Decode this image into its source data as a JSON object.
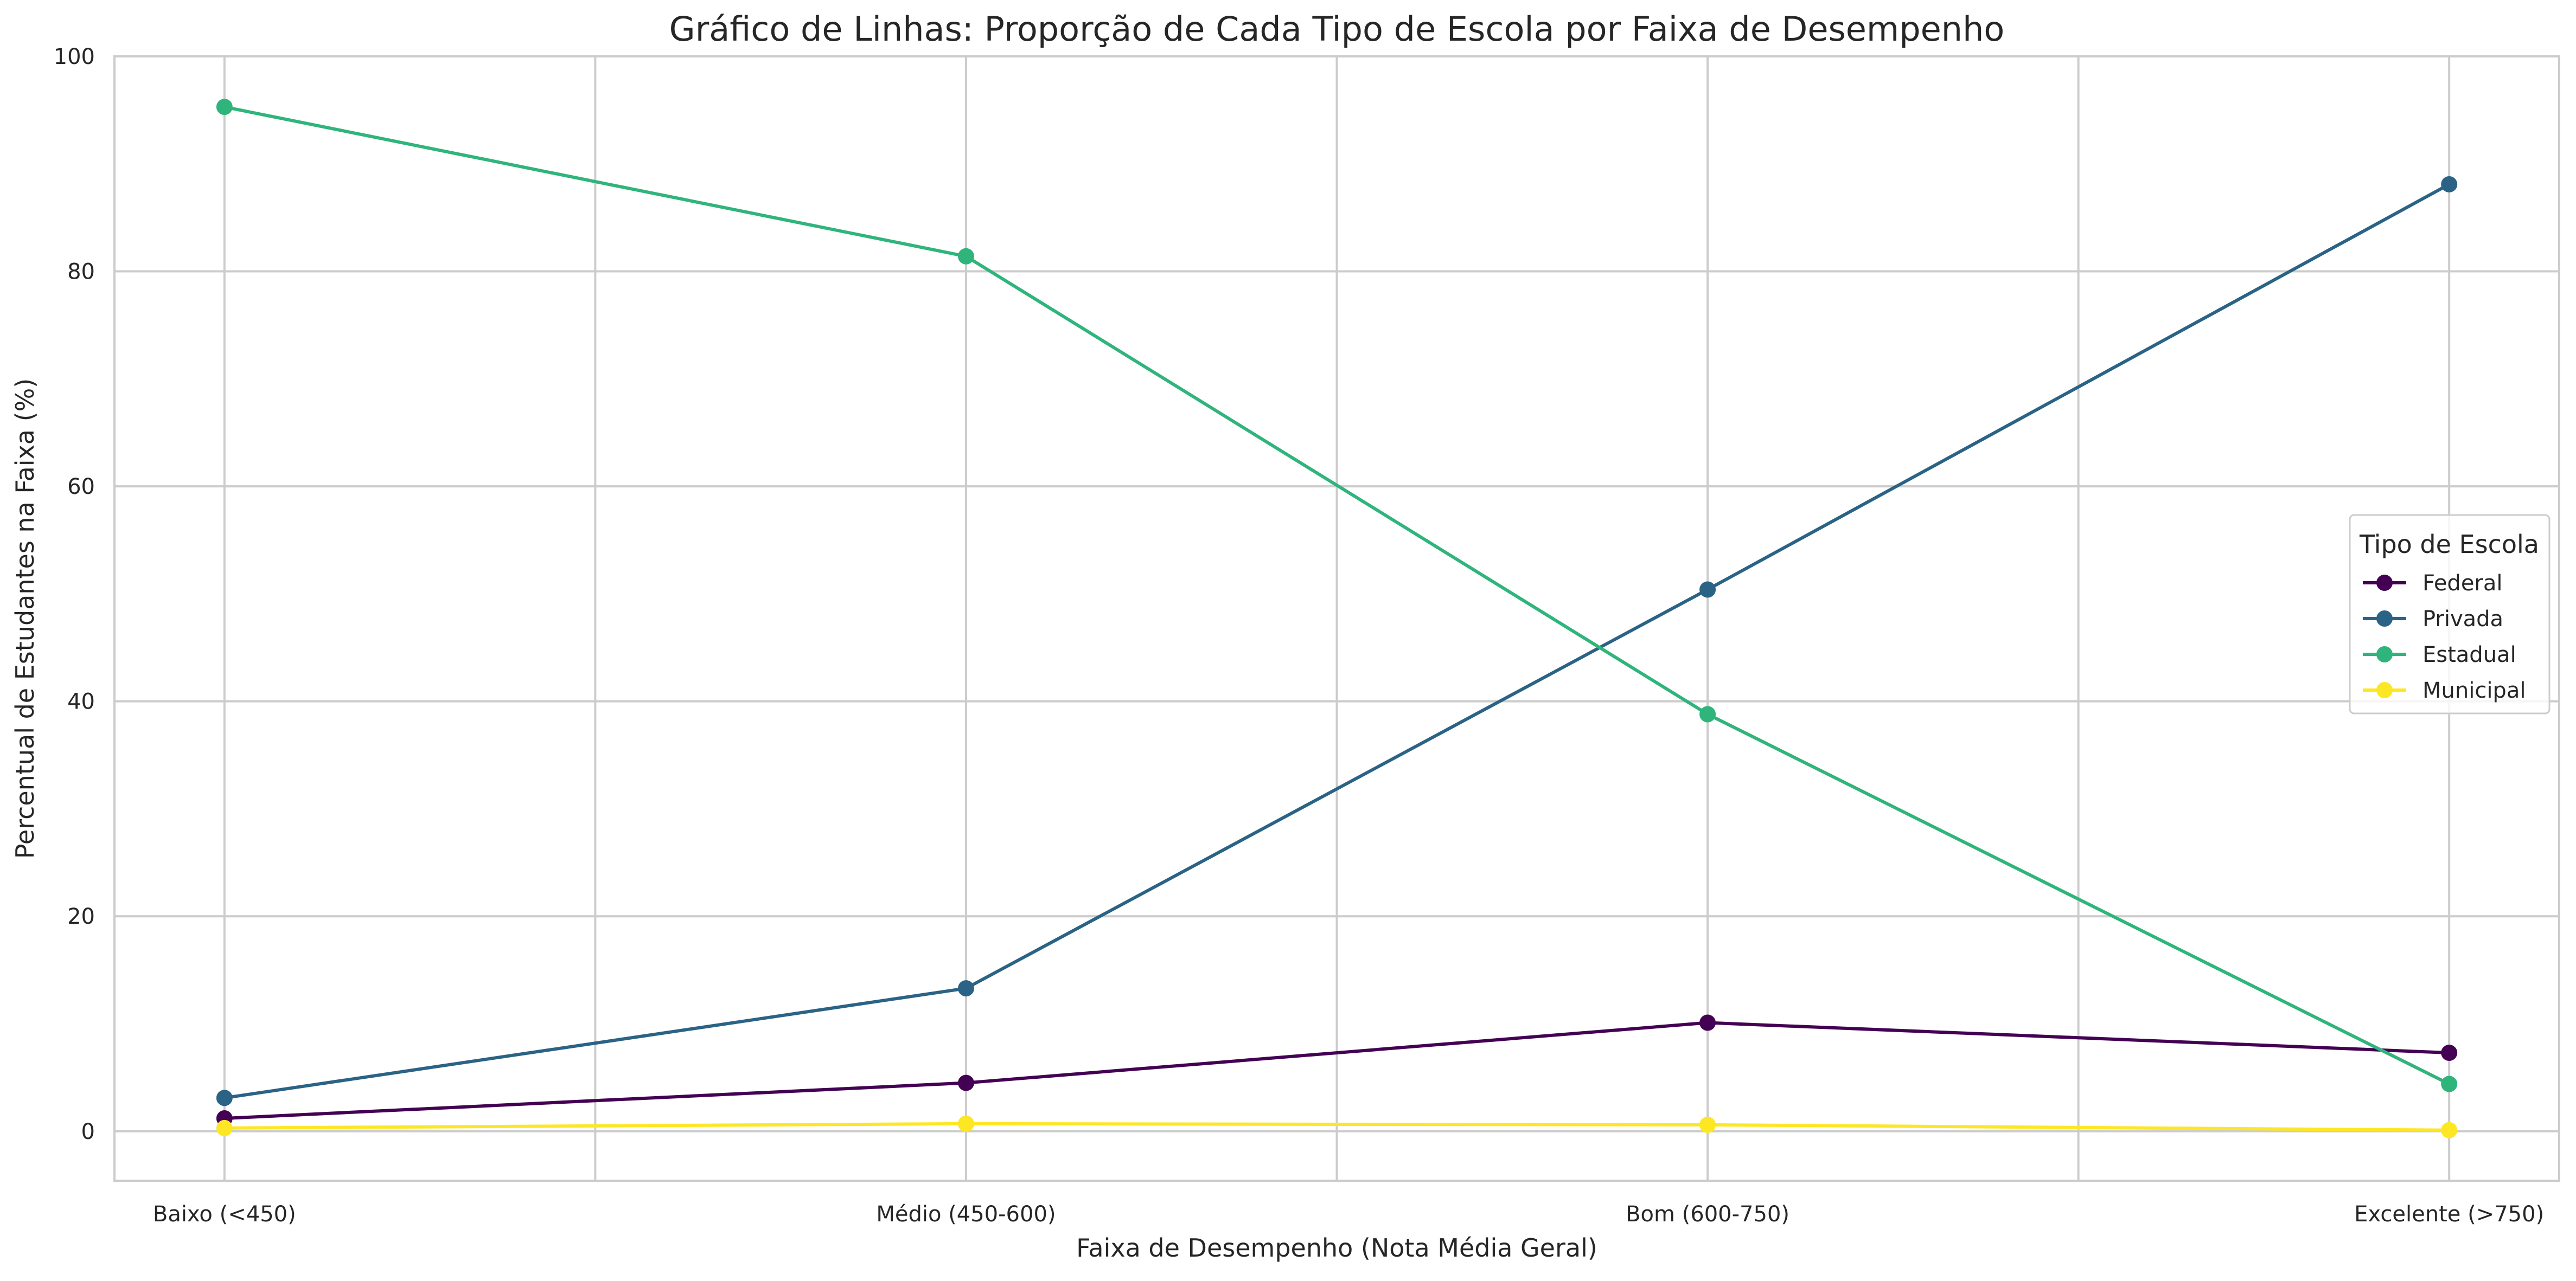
{
  "chart_data": {
    "type": "line",
    "title": "Gráfico de Linhas: Proporção de Cada Tipo de Escola por Faixa de Desempenho",
    "xlabel": "Faixa de Desempenho (Nota Média Geral)",
    "ylabel": "Percentual de Estudantes na Faixa (%)",
    "categories": [
      "Baixo (<450)",
      "Médio (450-600)",
      "Bom (600-750)",
      "Excelente (>750)"
    ],
    "ylim": [
      -4.6,
      100
    ],
    "yticks": [
      0,
      20,
      40,
      60,
      80,
      100
    ],
    "grid": true,
    "legend": {
      "title": "Tipo de Escola",
      "position": "right"
    },
    "series": [
      {
        "name": "Federal",
        "color": "#440154",
        "values": [
          1.2,
          4.5,
          10.1,
          7.3
        ]
      },
      {
        "name": "Privada",
        "color": "#2a6385",
        "values": [
          3.1,
          13.3,
          50.4,
          88.1
        ]
      },
      {
        "name": "Estadual",
        "color": "#2fb47c",
        "values": [
          95.3,
          81.4,
          38.8,
          4.4
        ]
      },
      {
        "name": "Municipal",
        "color": "#fde725",
        "values": [
          0.3,
          0.7,
          0.6,
          0.1
        ]
      }
    ]
  }
}
